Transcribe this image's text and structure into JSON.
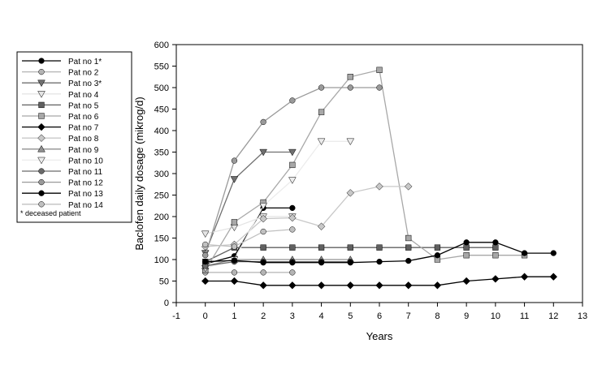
{
  "chart_data": {
    "type": "line",
    "xlabel": "Years",
    "ylabel": "Baclofen daily dosage (mikrog/d)",
    "xlim": [
      -1,
      13
    ],
    "ylim": [
      0,
      600
    ],
    "xticks": [
      "-1",
      "0",
      "1",
      "2",
      "3",
      "4",
      "5",
      "6",
      "7",
      "8",
      "9",
      "10",
      "11",
      "12",
      "13"
    ],
    "yticks": [
      "0",
      "50",
      "100",
      "150",
      "200",
      "250",
      "300",
      "350",
      "400",
      "450",
      "500",
      "550",
      "600"
    ],
    "grid": false,
    "legend_position": "left",
    "legend_note": "* deceased patient",
    "series": [
      {
        "name": "Pat no 1*",
        "color": "#000000",
        "marker": "circle",
        "x": [
          0,
          1,
          2,
          3
        ],
        "y": [
          90,
          108,
          220,
          220
        ]
      },
      {
        "name": "Pat no 2",
        "color": "#b4b4b4",
        "marker": "circle",
        "x": [
          0,
          1,
          2,
          3
        ],
        "y": [
          70,
          70,
          70,
          70
        ]
      },
      {
        "name": "Pat no 3*",
        "color": "#707070",
        "marker": "triangle-down",
        "x": [
          0,
          1,
          2,
          3
        ],
        "y": [
          115,
          287,
          350,
          350
        ]
      },
      {
        "name": "Pat no 4",
        "color": "#e4e4e4",
        "marker": "triangle-down",
        "x": [
          0,
          1,
          2,
          3
        ],
        "y": [
          160,
          175,
          200,
          200
        ]
      },
      {
        "name": "Pat no 5",
        "color": "#606060",
        "marker": "square",
        "x": [
          0,
          1,
          2,
          3,
          4,
          5,
          6,
          7,
          8,
          9,
          10
        ],
        "y": [
          95,
          128,
          128,
          128,
          128,
          128,
          128,
          128,
          128,
          128,
          128
        ]
      },
      {
        "name": "Pat no 6",
        "color": "#a8a8a8",
        "marker": "square",
        "x": [
          0,
          1,
          2,
          3,
          4,
          5,
          6,
          7,
          8,
          9,
          10,
          11
        ],
        "y": [
          75,
          187,
          233,
          320,
          443,
          525,
          541,
          150,
          100,
          110,
          110,
          110
        ]
      },
      {
        "name": "Pat no 7",
        "color": "#000000",
        "marker": "diamond",
        "x": [
          0,
          1,
          2,
          3,
          4,
          5,
          6,
          7,
          8,
          9,
          10,
          11,
          12
        ],
        "y": [
          50,
          50,
          40,
          40,
          40,
          40,
          40,
          40,
          40,
          50,
          55,
          60,
          60
        ]
      },
      {
        "name": "Pat no 8",
        "color": "#c8c8c8",
        "marker": "diamond",
        "x": [
          0,
          1,
          2,
          3,
          4,
          5,
          6,
          7
        ],
        "y": [
          130,
          135,
          195,
          197,
          177,
          255,
          270,
          270
        ]
      },
      {
        "name": "Pat no 9",
        "color": "#909090",
        "marker": "triangle-up",
        "x": [
          0,
          1,
          2,
          3,
          4,
          5
        ],
        "y": [
          85,
          100,
          100,
          100,
          100,
          100
        ]
      },
      {
        "name": "Pat no 10",
        "color": "#ececec",
        "marker": "triangle-down",
        "x": [
          0,
          1,
          2,
          3,
          4,
          5
        ],
        "y": [
          80,
          100,
          225,
          285,
          375,
          375
        ]
      },
      {
        "name": "Pat no 11",
        "color": "#6a6a6a",
        "marker": "circle",
        "x": [
          0,
          1,
          2,
          3,
          4,
          5
        ],
        "y": [
          85,
          95,
          95,
          95,
          95,
          95
        ]
      },
      {
        "name": "Pat no 12",
        "color": "#9a9a9a",
        "marker": "circle",
        "x": [
          0,
          1,
          2,
          3,
          4,
          5,
          6
        ],
        "y": [
          110,
          330,
          420,
          470,
          500,
          500,
          500
        ]
      },
      {
        "name": "Pat no 13",
        "color": "#000000",
        "marker": "circle",
        "x": [
          0,
          1,
          2,
          3,
          4,
          5,
          6,
          7,
          8,
          9,
          10,
          11,
          12
        ],
        "y": [
          95,
          98,
          93,
          93,
          93,
          93,
          95,
          97,
          110,
          140,
          140,
          115,
          115
        ]
      },
      {
        "name": "Pat no 14",
        "color": "#c0c0c0",
        "marker": "circle",
        "x": [
          0,
          1,
          2,
          3
        ],
        "y": [
          135,
          130,
          165,
          170
        ]
      }
    ]
  }
}
